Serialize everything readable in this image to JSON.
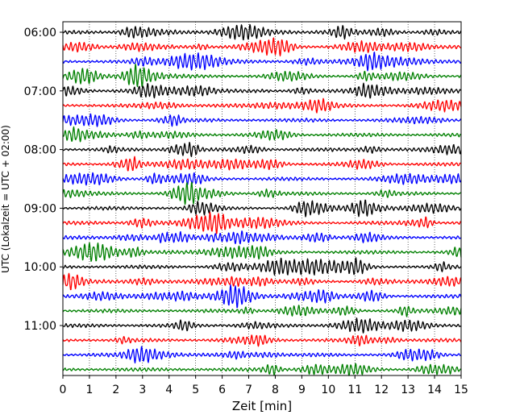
{
  "chart_data": {
    "type": "line",
    "title": "",
    "xlabel": "Zeit  [min]",
    "ylabel": "UTC (Lokalzeit = UTC + 02:00)",
    "xlim": [
      0,
      15
    ],
    "x_ticks": [
      0,
      1,
      2,
      3,
      4,
      5,
      6,
      7,
      8,
      9,
      10,
      11,
      12,
      13,
      14,
      15
    ],
    "x_tick_labels": [
      "0",
      "1",
      "2",
      "3",
      "4",
      "5",
      "6",
      "7",
      "8",
      "9",
      "10",
      "11",
      "12",
      "13",
      "14",
      "15"
    ],
    "y_tick_labels": [
      "06:00",
      "07:00",
      "08:00",
      "09:00",
      "10:00",
      "11:00"
    ],
    "y_tick_rows": [
      0,
      4,
      8,
      12,
      16,
      20
    ],
    "grid": "vertical dotted",
    "line_colors": [
      "#000000",
      "#ff0000",
      "#0000ff",
      "#008000"
    ],
    "rows": 24,
    "series": [
      {
        "start": "06:00"
      },
      {
        "start": "06:15"
      },
      {
        "start": "06:30"
      },
      {
        "start": "06:45"
      },
      {
        "start": "07:00"
      },
      {
        "start": "07:15"
      },
      {
        "start": "07:30"
      },
      {
        "start": "07:45"
      },
      {
        "start": "08:00"
      },
      {
        "start": "08:15"
      },
      {
        "start": "08:30"
      },
      {
        "start": "08:45"
      },
      {
        "start": "09:00"
      },
      {
        "start": "09:15"
      },
      {
        "start": "09:30"
      },
      {
        "start": "09:45"
      },
      {
        "start": "10:00"
      },
      {
        "start": "10:15"
      },
      {
        "start": "10:30"
      },
      {
        "start": "10:45"
      },
      {
        "start": "11:00"
      },
      {
        "start": "11:15"
      },
      {
        "start": "11:30"
      },
      {
        "start": "11:45"
      }
    ]
  }
}
